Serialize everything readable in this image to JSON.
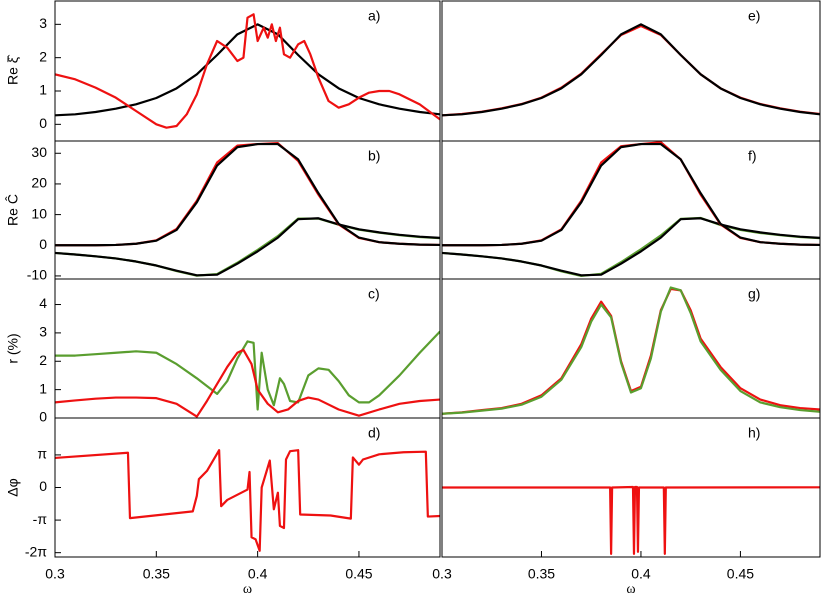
{
  "chart_data": [
    {
      "type": "line",
      "label": "a)",
      "ylabel": "Re ξ̂",
      "xlim": [
        0.3,
        0.49
      ],
      "ylim": [
        -0.5,
        3.7
      ],
      "yticks": [
        0,
        1,
        2,
        3
      ],
      "series": [
        {
          "color": "#000000",
          "x": [
            0.3,
            0.31,
            0.32,
            0.33,
            0.34,
            0.35,
            0.36,
            0.37,
            0.38,
            0.39,
            0.4,
            0.41,
            0.42,
            0.43,
            0.44,
            0.45,
            0.46,
            0.47,
            0.48,
            0.49
          ],
          "values": [
            0.27,
            0.3,
            0.37,
            0.47,
            0.6,
            0.79,
            1.08,
            1.5,
            2.08,
            2.7,
            3,
            2.7,
            2.08,
            1.5,
            1.08,
            0.79,
            0.6,
            0.47,
            0.37,
            0.3
          ]
        },
        {
          "color": "#ee1111",
          "x": [
            0.3,
            0.31,
            0.32,
            0.33,
            0.34,
            0.35,
            0.355,
            0.36,
            0.365,
            0.37,
            0.375,
            0.38,
            0.385,
            0.39,
            0.393,
            0.395,
            0.398,
            0.4,
            0.403,
            0.405,
            0.407,
            0.409,
            0.411,
            0.413,
            0.416,
            0.42,
            0.423,
            0.426,
            0.43,
            0.435,
            0.44,
            0.445,
            0.45,
            0.455,
            0.46,
            0.465,
            0.47,
            0.48,
            0.49
          ],
          "values": [
            1.5,
            1.35,
            1.1,
            0.8,
            0.4,
            0.0,
            -0.1,
            -0.05,
            0.3,
            0.9,
            1.8,
            2.5,
            2.3,
            1.9,
            2.0,
            3.2,
            3.3,
            2.5,
            2.9,
            2.6,
            3.0,
            2.5,
            2.9,
            2.1,
            2.0,
            2.4,
            2.5,
            2.1,
            1.4,
            0.7,
            0.5,
            0.6,
            0.8,
            0.95,
            1.0,
            1.0,
            0.9,
            0.6,
            0.15
          ]
        }
      ]
    },
    {
      "type": "line",
      "label": "b)",
      "ylabel": "Re Ĉ",
      "xlim": [
        0.3,
        0.49
      ],
      "ylim": [
        -11,
        34
      ],
      "yticks": [
        -10,
        0,
        10,
        20,
        30
      ],
      "series": [
        {
          "color": "#5a9e2f",
          "x": [
            0.3,
            0.31,
            0.32,
            0.33,
            0.34,
            0.35,
            0.36,
            0.37,
            0.38,
            0.39,
            0.4,
            0.41,
            0.42,
            0.43,
            0.44,
            0.45,
            0.46,
            0.47,
            0.48,
            0.49
          ],
          "values": [
            -2.5,
            -3,
            -3.6,
            -4.3,
            -5.3,
            -6.6,
            -8.4,
            -9.9,
            -9.4,
            -5.7,
            -1.5,
            3,
            8.7,
            8.7,
            6.7,
            5.1,
            4.1,
            3.3,
            2.7,
            2.3
          ]
        },
        {
          "color": "#000000",
          "x": [
            0.3,
            0.31,
            0.32,
            0.33,
            0.34,
            0.35,
            0.36,
            0.37,
            0.38,
            0.39,
            0.4,
            0.41,
            0.42,
            0.43,
            0.44,
            0.45,
            0.46,
            0.47,
            0.48,
            0.49
          ],
          "values": [
            -2.5,
            -3,
            -3.6,
            -4.3,
            -5.3,
            -6.6,
            -8.3,
            -9.8,
            -9.6,
            -6,
            -2,
            2.5,
            8.5,
            8.8,
            6.8,
            5.2,
            4.2,
            3.4,
            2.8,
            2.4
          ]
        },
        {
          "color": "#ee1111",
          "x": [
            0.3,
            0.31,
            0.32,
            0.33,
            0.34,
            0.35,
            0.36,
            0.37,
            0.38,
            0.39,
            0.4,
            0.41,
            0.42,
            0.43,
            0.44,
            0.45,
            0.46,
            0.47,
            0.48,
            0.49
          ],
          "values": [
            0,
            0,
            0,
            0.1,
            0.5,
            1.6,
            5.3,
            14.5,
            27,
            32.5,
            33,
            33.3,
            27.5,
            16.5,
            6.8,
            2.4,
            1,
            0.5,
            0.2,
            0.1
          ]
        },
        {
          "color": "#000000",
          "x": [
            0.3,
            0.31,
            0.32,
            0.33,
            0.34,
            0.35,
            0.36,
            0.37,
            0.38,
            0.39,
            0.4,
            0.41,
            0.42,
            0.43,
            0.44,
            0.45,
            0.46,
            0.47,
            0.48,
            0.49
          ],
          "values": [
            0,
            0,
            0,
            0.1,
            0.5,
            1.5,
            5,
            14,
            26,
            32,
            33,
            33,
            28,
            17,
            7,
            2.5,
            1,
            0.5,
            0.2,
            0.1
          ]
        }
      ]
    },
    {
      "type": "line",
      "label": "c)",
      "ylabel": "r (%)",
      "xlim": [
        0.3,
        0.49
      ],
      "ylim": [
        0,
        4.9
      ],
      "yticks": [
        0,
        1,
        2,
        3,
        4
      ],
      "series": [
        {
          "color": "#5a9e2f",
          "x": [
            0.3,
            0.31,
            0.32,
            0.33,
            0.34,
            0.35,
            0.36,
            0.37,
            0.38,
            0.385,
            0.39,
            0.395,
            0.398,
            0.4,
            0.402,
            0.405,
            0.408,
            0.411,
            0.413,
            0.416,
            0.42,
            0.425,
            0.43,
            0.435,
            0.44,
            0.445,
            0.45,
            0.455,
            0.46,
            0.47,
            0.48,
            0.49
          ],
          "values": [
            2.2,
            2.2,
            2.25,
            2.3,
            2.35,
            2.3,
            1.9,
            1.4,
            0.85,
            1.3,
            2.1,
            2.7,
            2.65,
            0.3,
            2.3,
            1.0,
            0.45,
            1.4,
            1.2,
            0.6,
            0.55,
            1.5,
            1.75,
            1.7,
            1.3,
            0.8,
            0.55,
            0.55,
            0.8,
            1.5,
            2.3,
            3.05
          ]
        },
        {
          "color": "#ee1111",
          "x": [
            0.3,
            0.31,
            0.32,
            0.33,
            0.34,
            0.35,
            0.36,
            0.37,
            0.375,
            0.38,
            0.385,
            0.39,
            0.393,
            0.397,
            0.4,
            0.405,
            0.41,
            0.415,
            0.42,
            0.425,
            0.43,
            0.44,
            0.45,
            0.46,
            0.47,
            0.48,
            0.49
          ],
          "values": [
            0.55,
            0.62,
            0.68,
            0.72,
            0.72,
            0.7,
            0.5,
            0.05,
            0.6,
            1.2,
            1.8,
            2.3,
            2.4,
            1.9,
            1.0,
            0.5,
            0.2,
            0.3,
            0.6,
            0.72,
            0.65,
            0.3,
            0.08,
            0.3,
            0.5,
            0.6,
            0.65
          ]
        }
      ]
    },
    {
      "type": "line",
      "label": "d)",
      "ylabel": "Δφ",
      "xlabel": "ω",
      "xlim": [
        0.3,
        0.49
      ],
      "ylim": [
        -6.7,
        6.7
      ],
      "yticks": [
        {
          "value": -6.2832,
          "label": "-2π"
        },
        {
          "value": -3.1416,
          "label": "-π"
        },
        0,
        {
          "value": 3.1416,
          "label": "π"
        }
      ],
      "xticks": [
        0.3,
        0.35,
        0.4,
        0.45
      ],
      "series": [
        {
          "color": "#ee1111",
          "x": [
            0.3,
            0.336,
            0.337,
            0.368,
            0.37,
            0.371,
            0.375,
            0.381,
            0.382,
            0.385,
            0.395,
            0.396,
            0.397,
            0.399,
            0.401,
            0.402,
            0.406,
            0.408,
            0.41,
            0.411,
            0.413,
            0.414,
            0.416,
            0.42,
            0.421,
            0.436,
            0.446,
            0.447,
            0.45,
            0.452,
            0.46,
            0.472,
            0.483,
            0.484,
            0.49
          ],
          "values": [
            2.85,
            3.35,
            -2.95,
            -2.3,
            -0.8,
            0.8,
            1.6,
            3.6,
            -1.8,
            -1.2,
            -0.2,
            1.5,
            -4.8,
            -5,
            -6.1,
            0,
            2.6,
            -2.1,
            -0.5,
            -3.7,
            -3.9,
            2.7,
            3.5,
            3.6,
            -2.6,
            -2.7,
            -3.0,
            2.9,
            2.2,
            2.7,
            3.2,
            3.4,
            3.45,
            -2.8,
            -2.75
          ]
        }
      ]
    },
    {
      "type": "line",
      "label": "e)",
      "xlim": [
        0.3,
        0.49
      ],
      "ylim": [
        -0.5,
        3.7
      ],
      "series": [
        {
          "color": "#ee1111",
          "x": [
            0.3,
            0.31,
            0.32,
            0.33,
            0.34,
            0.35,
            0.36,
            0.37,
            0.38,
            0.39,
            0.4,
            0.41,
            0.42,
            0.43,
            0.44,
            0.45,
            0.46,
            0.47,
            0.48,
            0.49
          ],
          "values": [
            0.27,
            0.31,
            0.38,
            0.48,
            0.61,
            0.8,
            1.1,
            1.52,
            2.1,
            2.68,
            2.95,
            2.68,
            2.08,
            1.5,
            1.08,
            0.8,
            0.61,
            0.48,
            0.38,
            0.31
          ]
        },
        {
          "color": "#000000",
          "x": [
            0.3,
            0.31,
            0.32,
            0.33,
            0.34,
            0.35,
            0.36,
            0.37,
            0.38,
            0.39,
            0.4,
            0.41,
            0.42,
            0.43,
            0.44,
            0.45,
            0.46,
            0.47,
            0.48,
            0.49
          ],
          "values": [
            0.27,
            0.3,
            0.37,
            0.47,
            0.6,
            0.79,
            1.08,
            1.5,
            2.08,
            2.7,
            3,
            2.7,
            2.08,
            1.5,
            1.08,
            0.79,
            0.6,
            0.47,
            0.37,
            0.3
          ]
        }
      ]
    },
    {
      "type": "line",
      "label": "f)",
      "xlim": [
        0.3,
        0.49
      ],
      "ylim": [
        -11,
        34
      ],
      "series": [
        {
          "color": "#5a9e2f",
          "x": [
            0.3,
            0.31,
            0.32,
            0.33,
            0.34,
            0.35,
            0.36,
            0.37,
            0.38,
            0.39,
            0.4,
            0.41,
            0.42,
            0.43,
            0.44,
            0.45,
            0.46,
            0.47,
            0.48,
            0.49
          ],
          "values": [
            -2.5,
            -3,
            -3.6,
            -4.3,
            -5.3,
            -6.6,
            -8.5,
            -10,
            -9.3,
            -5.5,
            -1.3,
            3.2,
            8.6,
            8.9,
            6.6,
            5,
            4,
            3.3,
            2.7,
            2.3
          ]
        },
        {
          "color": "#000000",
          "x": [
            0.3,
            0.31,
            0.32,
            0.33,
            0.34,
            0.35,
            0.36,
            0.37,
            0.38,
            0.39,
            0.4,
            0.41,
            0.42,
            0.43,
            0.44,
            0.45,
            0.46,
            0.47,
            0.48,
            0.49
          ],
          "values": [
            -2.5,
            -3,
            -3.6,
            -4.3,
            -5.3,
            -6.6,
            -8.3,
            -9.8,
            -9.6,
            -6,
            -2,
            2.5,
            8.5,
            8.8,
            6.8,
            5.2,
            4.2,
            3.4,
            2.8,
            2.4
          ]
        },
        {
          "color": "#ee1111",
          "x": [
            0.3,
            0.31,
            0.32,
            0.33,
            0.34,
            0.35,
            0.36,
            0.37,
            0.38,
            0.39,
            0.4,
            0.41,
            0.42,
            0.43,
            0.44,
            0.45,
            0.46,
            0.47,
            0.48,
            0.49
          ],
          "values": [
            0,
            0,
            0,
            0.1,
            0.5,
            1.6,
            5.2,
            14.5,
            27,
            32.3,
            33,
            33.6,
            28,
            16.5,
            6.8,
            2.4,
            1,
            0.5,
            0.2,
            0.1
          ]
        },
        {
          "color": "#000000",
          "x": [
            0.3,
            0.31,
            0.32,
            0.33,
            0.34,
            0.35,
            0.36,
            0.37,
            0.38,
            0.39,
            0.4,
            0.41,
            0.42,
            0.43,
            0.44,
            0.45,
            0.46,
            0.47,
            0.48,
            0.49
          ],
          "values": [
            0,
            0,
            0,
            0.1,
            0.5,
            1.5,
            5,
            14,
            26,
            32,
            33,
            33,
            28,
            17,
            7,
            2.5,
            1,
            0.5,
            0.2,
            0.1
          ]
        }
      ]
    },
    {
      "type": "line",
      "label": "g)",
      "xlim": [
        0.3,
        0.49
      ],
      "ylim": [
        0,
        4.9
      ],
      "series": [
        {
          "color": "#ee1111",
          "x": [
            0.3,
            0.31,
            0.32,
            0.33,
            0.34,
            0.35,
            0.36,
            0.37,
            0.375,
            0.38,
            0.385,
            0.39,
            0.395,
            0.4,
            0.405,
            0.41,
            0.415,
            0.42,
            0.425,
            0.43,
            0.44,
            0.45,
            0.46,
            0.47,
            0.48,
            0.49
          ],
          "values": [
            0.15,
            0.2,
            0.28,
            0.35,
            0.5,
            0.8,
            1.4,
            2.6,
            3.5,
            4.1,
            3.6,
            2.0,
            0.95,
            1.1,
            2.2,
            3.8,
            4.55,
            4.5,
            3.8,
            2.8,
            1.8,
            1.05,
            0.65,
            0.45,
            0.35,
            0.3
          ]
        },
        {
          "color": "#5a9e2f",
          "x": [
            0.3,
            0.31,
            0.32,
            0.33,
            0.34,
            0.35,
            0.36,
            0.37,
            0.375,
            0.38,
            0.385,
            0.39,
            0.395,
            0.4,
            0.405,
            0.41,
            0.415,
            0.42,
            0.425,
            0.43,
            0.44,
            0.45,
            0.46,
            0.47,
            0.48,
            0.49
          ],
          "values": [
            0.15,
            0.19,
            0.26,
            0.33,
            0.47,
            0.75,
            1.35,
            2.5,
            3.4,
            4.0,
            3.55,
            1.95,
            0.9,
            1.05,
            2.1,
            3.75,
            4.6,
            4.5,
            3.7,
            2.7,
            1.7,
            0.95,
            0.55,
            0.38,
            0.28,
            0.22
          ]
        }
      ]
    },
    {
      "type": "line",
      "label": "h)",
      "xlabel": "ω",
      "xlim": [
        0.3,
        0.49
      ],
      "ylim": [
        -6.7,
        6.7
      ],
      "xticks": [
        0.3,
        0.35,
        0.4,
        0.45
      ],
      "series": [
        {
          "color": "#ee1111",
          "x": [
            0.3,
            0.3845,
            0.385,
            0.3855,
            0.396,
            0.3965,
            0.397,
            0.398,
            0.3985,
            0.399,
            0.4115,
            0.412,
            0.4125,
            0.49
          ],
          "values": [
            0,
            0,
            -6.4,
            0,
            0.05,
            -6.4,
            0.05,
            0.05,
            -6.2,
            0,
            0,
            -6.4,
            0,
            0.02
          ]
        }
      ]
    }
  ]
}
